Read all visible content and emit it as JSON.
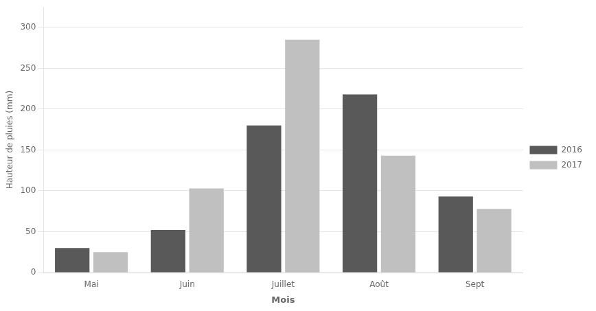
{
  "chart_data": {
    "type": "bar",
    "categories": [
      "Mai",
      "Juin",
      "Juillet",
      "Août",
      "Sept"
    ],
    "series": [
      {
        "name": "2016",
        "color": "#595959",
        "values": [
          30,
          52,
          180,
          218,
          93
        ]
      },
      {
        "name": "2017",
        "color": "#c0c0c0",
        "values": [
          25,
          103,
          285,
          143,
          78
        ]
      }
    ],
    "xlabel": "Mois",
    "ylabel": "Hauteur de pluies (mm)",
    "ylim": [
      0,
      325
    ],
    "yticks": [
      0,
      50,
      100,
      150,
      200,
      250,
      300
    ],
    "grid": true,
    "legend": "right"
  }
}
